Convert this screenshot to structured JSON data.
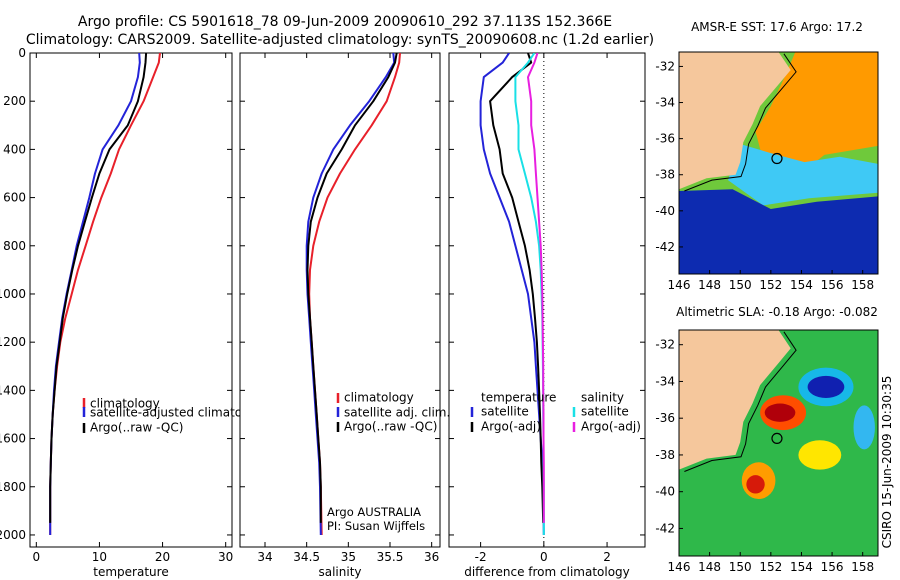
{
  "header": {
    "line1": "Argo profile: CS 5901618_78 09-Jun-2009 20090610_292 37.113S 152.366E",
    "line2": "Climatology: CARS2009. Satellite-adjusted climatology: synTS_20090608.nc (1.2d earlier)"
  },
  "side_label": "CSIRO 15-Jun-2009 10:30:35",
  "colors": {
    "climatology": "#e8202a",
    "satellite": "#2323d8",
    "argo": "#000000",
    "sal_satellite": "#19e0e6",
    "sal_argo": "#e81fe0",
    "land": "#f5c79c"
  },
  "chart_data": [
    {
      "type": "line",
      "name": "temperature-panel",
      "xlabel": "temperature",
      "xlim": [
        -1,
        31
      ],
      "ylim": [
        2050,
        0
      ],
      "xticks": [
        0,
        10,
        20,
        30
      ],
      "yticks": [
        0,
        200,
        400,
        600,
        800,
        1000,
        1200,
        1400,
        1600,
        1800,
        2000
      ],
      "legend": [
        "climatology",
        "satellite-adjusted climatology",
        "Argo(..raw -QC)"
      ],
      "series": [
        {
          "name": "climatology",
          "color": "climatology",
          "x": [
            19.6,
            19.4,
            18.5,
            17.0,
            15.0,
            13.1,
            11.8,
            10.3,
            9.0,
            7.8,
            6.6,
            5.6,
            4.6,
            3.8,
            3.3,
            2.9,
            2.6,
            2.4,
            2.3,
            2.2,
            2.2
          ],
          "y": [
            0,
            40,
            100,
            200,
            300,
            400,
            500,
            600,
            700,
            800,
            900,
            1000,
            1100,
            1200,
            1300,
            1400,
            1500,
            1600,
            1700,
            1800,
            2000
          ]
        },
        {
          "name": "satellite",
          "color": "satellite",
          "x": [
            16.3,
            16.4,
            16.1,
            15.0,
            13.0,
            10.5,
            9.3,
            8.4,
            7.4,
            6.4,
            5.6,
            4.8,
            4.1,
            3.6,
            3.1,
            2.8,
            2.6,
            2.4,
            2.3,
            2.2,
            2.2
          ],
          "y": [
            0,
            40,
            100,
            200,
            300,
            400,
            500,
            600,
            700,
            800,
            900,
            1000,
            1100,
            1200,
            1300,
            1400,
            1500,
            1600,
            1700,
            1800,
            2000
          ]
        },
        {
          "name": "argo",
          "color": "argo",
          "x": [
            17.4,
            17.3,
            17.0,
            16.1,
            14.5,
            11.6,
            10.0,
            8.8,
            7.7,
            6.6,
            5.7,
            4.9,
            4.2,
            3.7,
            3.2,
            2.9,
            2.6,
            2.4,
            2.3,
            2.2,
            2.2
          ],
          "y": [
            0,
            40,
            100,
            200,
            300,
            400,
            500,
            600,
            700,
            800,
            900,
            1000,
            1100,
            1200,
            1300,
            1400,
            1500,
            1600,
            1700,
            1800,
            1950
          ]
        }
      ]
    },
    {
      "type": "line",
      "name": "salinity-panel",
      "xlabel": "salinity",
      "xlim": [
        33.7,
        36.1
      ],
      "ylim": [
        2050,
        0
      ],
      "xticks": [
        34,
        34.5,
        35,
        35.5,
        36
      ],
      "legend": [
        "climatology",
        "satellite adj. clim.",
        "Argo(..raw -QC)"
      ],
      "annotation": [
        "Argo AUSTRALIA",
        "PI: Susan Wijffels"
      ],
      "series": [
        {
          "name": "climatology",
          "color": "climatology",
          "x": [
            35.62,
            35.61,
            35.56,
            35.46,
            35.28,
            35.08,
            34.9,
            34.75,
            34.65,
            34.58,
            34.54,
            34.53,
            34.54,
            34.56,
            34.58,
            34.6,
            34.62,
            34.64,
            34.66,
            34.67,
            34.68
          ],
          "y": [
            0,
            40,
            100,
            200,
            300,
            400,
            500,
            600,
            700,
            800,
            900,
            1000,
            1100,
            1200,
            1300,
            1400,
            1500,
            1600,
            1700,
            1800,
            2000
          ]
        },
        {
          "name": "satellite",
          "color": "satellite",
          "x": [
            35.54,
            35.55,
            35.45,
            35.25,
            35.02,
            34.82,
            34.68,
            34.58,
            34.52,
            34.5,
            34.5,
            34.51,
            34.53,
            34.55,
            34.57,
            34.59,
            34.61,
            34.63,
            34.65,
            34.66,
            34.67
          ],
          "y": [
            0,
            40,
            100,
            200,
            300,
            400,
            500,
            600,
            700,
            800,
            900,
            1000,
            1100,
            1200,
            1300,
            1400,
            1500,
            1600,
            1700,
            1800,
            2000
          ]
        },
        {
          "name": "argo",
          "color": "argo",
          "x": [
            35.58,
            35.56,
            35.48,
            35.3,
            35.08,
            34.92,
            34.74,
            34.63,
            34.55,
            34.52,
            34.51,
            34.52,
            34.54,
            34.56,
            34.58,
            34.6,
            34.62,
            34.64,
            34.66,
            34.67,
            34.67
          ],
          "y": [
            0,
            40,
            100,
            200,
            300,
            400,
            500,
            600,
            700,
            800,
            900,
            1000,
            1100,
            1200,
            1300,
            1400,
            1500,
            1600,
            1700,
            1800,
            1950
          ]
        }
      ]
    },
    {
      "type": "line",
      "name": "difference-panel",
      "xlabel": "difference from climatology",
      "xlim": [
        -3,
        3.2
      ],
      "ylim": [
        2050,
        0
      ],
      "xticks": [
        -2,
        0,
        2
      ],
      "legend_temperature": [
        "temperature",
        "satellite",
        "Argo(-adj)"
      ],
      "legend_salinity": [
        "salinity",
        "satellite",
        "Argo(-adj)"
      ],
      "series": [
        {
          "name": "temp-satellite",
          "color": "satellite",
          "x": [
            -1.1,
            -1.3,
            -1.9,
            -2.0,
            -2.0,
            -1.9,
            -1.7,
            -1.4,
            -1.1,
            -0.9,
            -0.7,
            -0.5,
            -0.4,
            -0.3,
            -0.25,
            -0.2,
            -0.15,
            -0.1,
            -0.05,
            -0.02,
            0
          ],
          "y": [
            0,
            40,
            100,
            200,
            300,
            400,
            500,
            600,
            700,
            800,
            900,
            1000,
            1100,
            1200,
            1300,
            1400,
            1500,
            1600,
            1700,
            1800,
            2000
          ]
        },
        {
          "name": "temp-argo",
          "color": "argo",
          "x": [
            -0.5,
            -0.4,
            -1.0,
            -1.7,
            -1.6,
            -1.4,
            -1.3,
            -1.0,
            -0.8,
            -0.6,
            -0.45,
            -0.35,
            -0.28,
            -0.22,
            -0.18,
            -0.15,
            -0.12,
            -0.1,
            -0.08,
            -0.05,
            -0.02
          ],
          "y": [
            0,
            40,
            100,
            200,
            300,
            400,
            500,
            600,
            700,
            800,
            900,
            1000,
            1100,
            1200,
            1300,
            1400,
            1500,
            1600,
            1700,
            1800,
            1950
          ]
        },
        {
          "name": "sal-satellite",
          "color": "sal_satellite",
          "x": [
            -0.3,
            -0.5,
            -0.9,
            -0.9,
            -0.8,
            -0.8,
            -0.6,
            -0.4,
            -0.25,
            -0.15,
            -0.1,
            -0.07,
            -0.05,
            -0.04,
            -0.03,
            -0.02,
            -0.02,
            -0.01,
            -0.01,
            0,
            0
          ],
          "y": [
            0,
            40,
            100,
            200,
            300,
            400,
            500,
            600,
            700,
            800,
            900,
            1000,
            1100,
            1200,
            1300,
            1400,
            1500,
            1600,
            1700,
            1800,
            2000
          ]
        },
        {
          "name": "sal-argo",
          "color": "sal_argo",
          "x": [
            -0.2,
            -0.3,
            -0.5,
            -0.4,
            -0.4,
            -0.3,
            -0.25,
            -0.2,
            -0.15,
            -0.1,
            -0.07,
            -0.05,
            -0.04,
            -0.03,
            -0.02,
            -0.02,
            -0.01,
            -0.01,
            0,
            0,
            0
          ],
          "y": [
            0,
            40,
            100,
            200,
            300,
            400,
            500,
            600,
            700,
            800,
            900,
            1000,
            1100,
            1200,
            1300,
            1400,
            1500,
            1600,
            1700,
            1800,
            1950
          ]
        }
      ]
    },
    {
      "type": "heatmap",
      "name": "sst-map",
      "title": "AMSR-E SST: 17.6 Argo: 17.2",
      "xlim": [
        146,
        159
      ],
      "ylim": [
        -43.5,
        -31.2
      ],
      "xticks": [
        146,
        148,
        150,
        152,
        154,
        156,
        158
      ],
      "yticks": [
        -32,
        -34,
        -36,
        -38,
        -40,
        -42
      ],
      "argo_position": [
        152.4,
        -37.1
      ],
      "coast": [
        [
          152.5,
          -31.2
        ],
        [
          153.3,
          -32.2
        ],
        [
          152.5,
          -33.0
        ],
        [
          151.3,
          -34.2
        ],
        [
          150.8,
          -35.2
        ],
        [
          150.2,
          -36.2
        ],
        [
          150.0,
          -37.3
        ],
        [
          149.7,
          -38.0
        ],
        [
          147.8,
          -38.2
        ],
        [
          146.0,
          -38.8
        ]
      ],
      "fields": [
        {
          "label": "warm-subtropical",
          "color": "#ff9a00",
          "x": [
            153.6,
            159,
            159,
            155.5,
            154.6,
            153.0,
            151.4,
            151.0,
            152.0,
            153.0
          ],
          "y": [
            -31.2,
            -31.2,
            -36.4,
            -36.9,
            -37.5,
            -37.7,
            -36.9,
            -35.6,
            -34.2,
            -32.4
          ]
        },
        {
          "label": "mid-water",
          "color": "#3fc9f5",
          "x": [
            150.0,
            152.0,
            154.2,
            156.5,
            159,
            159,
            154.5,
            151.5,
            149.2
          ],
          "y": [
            -36.3,
            -36.8,
            -37.3,
            -37.0,
            -37.4,
            -39.0,
            -39.3,
            -39.7,
            -38.3
          ]
        },
        {
          "label": "cool-water",
          "color": "#0d2bb0",
          "x": [
            146.0,
            149.5,
            152.0,
            155.0,
            159,
            159,
            146.0
          ],
          "y": [
            -38.9,
            -38.8,
            -39.9,
            -39.5,
            -39.2,
            -43.5,
            -43.5
          ]
        }
      ]
    },
    {
      "type": "heatmap",
      "name": "sla-map",
      "title": "Altimetric SLA: -0.18 Argo: -0.082",
      "xlim": [
        146,
        159
      ],
      "ylim": [
        -43.5,
        -31.2
      ],
      "xticks": [
        146,
        148,
        150,
        152,
        154,
        156,
        158
      ],
      "yticks": [
        -32,
        -34,
        -36,
        -38,
        -40,
        -42
      ],
      "argo_position": [
        152.4,
        -37.1
      ],
      "coast": [
        [
          152.5,
          -31.2
        ],
        [
          153.3,
          -32.2
        ],
        [
          152.5,
          -33.0
        ],
        [
          151.3,
          -34.2
        ],
        [
          150.8,
          -35.2
        ],
        [
          150.2,
          -36.2
        ],
        [
          150.0,
          -37.3
        ],
        [
          149.7,
          -38.0
        ],
        [
          147.8,
          -38.2
        ],
        [
          146.0,
          -38.8
        ]
      ],
      "eddies": [
        {
          "label": "warm-eddy",
          "color": "#b0000a",
          "cx": 152.6,
          "cy": -35.7,
          "rx": 1.0,
          "ry": 0.5
        },
        {
          "label": "warm-ring",
          "color": "#ff4d00",
          "cx": 152.8,
          "cy": -35.7,
          "rx": 1.5,
          "ry": 0.95
        },
        {
          "label": "cold-eddy",
          "color": "#1020b0",
          "cx": 155.6,
          "cy": -34.3,
          "rx": 1.2,
          "ry": 0.6
        },
        {
          "label": "cold-ring",
          "color": "#17b8e8",
          "cx": 155.6,
          "cy": -34.3,
          "rx": 1.8,
          "ry": 1.05
        },
        {
          "label": "south-warm",
          "color": "#d61a0a",
          "cx": 151.0,
          "cy": -39.6,
          "rx": 0.6,
          "ry": 0.5
        },
        {
          "label": "south-ring",
          "color": "#ff9c00",
          "cx": 151.2,
          "cy": -39.4,
          "rx": 1.1,
          "ry": 1.0
        },
        {
          "label": "east-high",
          "color": "#ffe600",
          "cx": 155.2,
          "cy": -38.0,
          "rx": 1.4,
          "ry": 0.8
        },
        {
          "label": "far-east",
          "color": "#33b7f0",
          "cx": 158.1,
          "cy": -36.5,
          "rx": 0.7,
          "ry": 1.2
        }
      ]
    }
  ]
}
